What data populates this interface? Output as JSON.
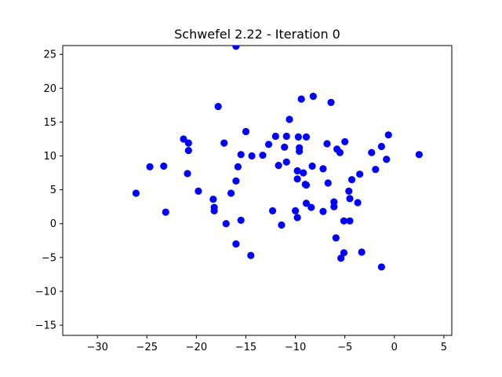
{
  "chart_data": {
    "type": "scatter",
    "title": "Schwefel 2.22 - Iteration 0",
    "xlabel": "",
    "ylabel": "",
    "xlim": [
      -33.5,
      5.8
    ],
    "ylim": [
      -16.5,
      26.3
    ],
    "xticks": [
      -30,
      -25,
      -20,
      -15,
      -10,
      -5,
      0,
      5
    ],
    "yticks": [
      -15,
      -10,
      -5,
      0,
      5,
      10,
      15,
      20,
      25
    ],
    "xtick_labels": [
      "−30",
      "−25",
      "−20",
      "−15",
      "−10",
      "−5",
      "0",
      "5"
    ],
    "ytick_labels": [
      "−15",
      "−10",
      "−5",
      "0",
      "5",
      "10",
      "15",
      "20",
      "25"
    ],
    "grid": false,
    "marker_color": "#0000ff",
    "series": [
      {
        "points": [
          [
            -16.0,
            26.2
          ],
          [
            -17.8,
            17.3
          ],
          [
            -9.4,
            18.4
          ],
          [
            -8.2,
            18.8
          ],
          [
            -6.4,
            17.9
          ],
          [
            -10.6,
            15.4
          ],
          [
            -15.0,
            13.6
          ],
          [
            -21.3,
            12.5
          ],
          [
            -20.8,
            11.9
          ],
          [
            -17.2,
            11.9
          ],
          [
            -12.0,
            12.9
          ],
          [
            -10.9,
            12.9
          ],
          [
            -9.7,
            12.8
          ],
          [
            -8.9,
            12.8
          ],
          [
            -12.7,
            11.7
          ],
          [
            -11.1,
            11.3
          ],
          [
            -9.6,
            11.2
          ],
          [
            -9.6,
            10.7
          ],
          [
            -6.8,
            11.8
          ],
          [
            -5.0,
            12.1
          ],
          [
            -5.8,
            11.0
          ],
          [
            -5.5,
            10.5
          ],
          [
            -0.6,
            13.1
          ],
          [
            -1.3,
            11.4
          ],
          [
            -2.3,
            10.5
          ],
          [
            2.5,
            10.2
          ],
          [
            -20.8,
            10.8
          ],
          [
            -15.5,
            10.2
          ],
          [
            -14.4,
            10.0
          ],
          [
            -13.3,
            10.1
          ],
          [
            -0.8,
            9.5
          ],
          [
            -24.7,
            8.4
          ],
          [
            -23.3,
            8.5
          ],
          [
            -15.8,
            8.4
          ],
          [
            -11.7,
            8.6
          ],
          [
            -10.9,
            9.1
          ],
          [
            -8.3,
            8.5
          ],
          [
            -7.2,
            8.1
          ],
          [
            -20.9,
            7.4
          ],
          [
            -9.8,
            7.8
          ],
          [
            -9.2,
            7.5
          ],
          [
            -3.5,
            7.3
          ],
          [
            -1.9,
            8.0
          ],
          [
            -16.0,
            6.3
          ],
          [
            -9.8,
            6.6
          ],
          [
            -9.0,
            5.8
          ],
          [
            -8.9,
            5.7
          ],
          [
            -6.7,
            6.0
          ],
          [
            -4.3,
            6.5
          ],
          [
            -26.1,
            4.5
          ],
          [
            -19.8,
            4.8
          ],
          [
            -16.5,
            4.5
          ],
          [
            -4.6,
            4.8
          ],
          [
            -18.3,
            3.6
          ],
          [
            -4.5,
            3.7
          ],
          [
            -8.9,
            3.0
          ],
          [
            -6.1,
            3.2
          ],
          [
            -3.7,
            3.1
          ],
          [
            -18.2,
            2.4
          ],
          [
            -18.2,
            1.9
          ],
          [
            -23.1,
            1.7
          ],
          [
            -12.3,
            1.9
          ],
          [
            -10.0,
            1.9
          ],
          [
            -8.4,
            2.4
          ],
          [
            -7.2,
            1.8
          ],
          [
            -6.1,
            2.5
          ],
          [
            -15.5,
            0.5
          ],
          [
            -17.0,
            0.0
          ],
          [
            -11.4,
            -0.2
          ],
          [
            -9.8,
            0.9
          ],
          [
            -5.1,
            0.4
          ],
          [
            -4.5,
            0.4
          ],
          [
            -16.0,
            -3.0
          ],
          [
            -14.5,
            -4.7
          ],
          [
            -5.9,
            -2.1
          ],
          [
            -5.1,
            -4.3
          ],
          [
            -5.4,
            -5.1
          ],
          [
            -3.3,
            -4.2
          ],
          [
            -1.3,
            -6.4
          ]
        ]
      }
    ]
  }
}
